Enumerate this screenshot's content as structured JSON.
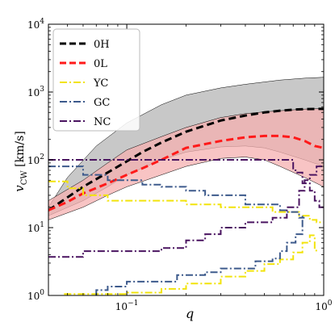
{
  "chart_data": {
    "type": "line",
    "title": "",
    "xlabel": "q",
    "ylabel": "v_CW [km/s]",
    "xscale": "log",
    "yscale": "log",
    "xlim": [
      0.04,
      1.0
    ],
    "ylim": [
      1,
      10000
    ],
    "grid": false,
    "legend_position": "top-left",
    "x_ticks": [
      {
        "value": 0.1,
        "base": "10",
        "exp": "−1"
      },
      {
        "value": 1,
        "base": "10",
        "exp": "0"
      }
    ],
    "y_ticks": [
      {
        "value": 1,
        "base": "10",
        "exp": "0"
      },
      {
        "value": 10,
        "base": "10",
        "exp": "1"
      },
      {
        "value": 100,
        "base": "10",
        "exp": "2"
      },
      {
        "value": 1000,
        "base": "10",
        "exp": "3"
      },
      {
        "value": 10000,
        "base": "10",
        "exp": "4"
      }
    ],
    "bands": [
      {
        "name": "0H",
        "color": "#c8c8c8",
        "upper": {
          "x": [
            0.04,
            0.05,
            0.07,
            0.1,
            0.15,
            0.2,
            0.3,
            0.4,
            0.6,
            0.8,
            1.0
          ],
          "y": [
            20,
            55,
            160,
            350,
            650,
            900,
            1150,
            1300,
            1500,
            1600,
            1650
          ]
        },
        "lower": {
          "x": [
            0.04,
            0.06,
            0.08,
            0.1,
            0.15,
            0.2,
            0.3,
            0.4,
            0.5,
            0.6,
            0.8,
            1.0
          ],
          "y": [
            15,
            25,
            40,
            60,
            100,
            130,
            155,
            160,
            150,
            130,
            100,
            80
          ]
        }
      },
      {
        "name": "0L",
        "color": "#f5b0b0",
        "upper": {
          "x": [
            0.04,
            0.06,
            0.08,
            0.1,
            0.15,
            0.2,
            0.3,
            0.4,
            0.5,
            0.6,
            0.8,
            1.0
          ],
          "y": [
            25,
            50,
            90,
            140,
            220,
            300,
            420,
            480,
            510,
            530,
            560,
            570
          ]
        },
        "lower": {
          "x": [
            0.04,
            0.06,
            0.08,
            0.1,
            0.15,
            0.2,
            0.3,
            0.4,
            0.5,
            0.6,
            0.8,
            1.0
          ],
          "y": [
            13,
            20,
            30,
            40,
            60,
            80,
            105,
            110,
            100,
            80,
            55,
            40
          ]
        }
      }
    ],
    "series": [
      {
        "name": "0H",
        "style": "dashed",
        "color": "#000000",
        "x": [
          0.04,
          0.05,
          0.06,
          0.08,
          0.1,
          0.12,
          0.15,
          0.2,
          0.25,
          0.3,
          0.4,
          0.5,
          0.6,
          0.7,
          0.8,
          1.0
        ],
        "y": [
          18,
          28,
          40,
          65,
          95,
          130,
          180,
          260,
          320,
          380,
          450,
          500,
          530,
          550,
          560,
          565
        ]
      },
      {
        "name": "0L",
        "style": "dashed",
        "color": "#ff1a1a",
        "x": [
          0.04,
          0.05,
          0.06,
          0.08,
          0.1,
          0.12,
          0.15,
          0.2,
          0.3,
          0.4,
          0.5,
          0.6,
          0.7,
          0.8,
          0.9,
          1.0
        ],
        "y": [
          18,
          24,
          32,
          45,
          60,
          75,
          100,
          150,
          190,
          215,
          225,
          225,
          215,
          190,
          160,
          150
        ]
      },
      {
        "name": "YC",
        "style": "dashdot-steps",
        "color": "#f2e30c",
        "steps": [
          {
            "x": [
              0.04,
              0.05,
              0.05,
              0.06,
              0.06,
              0.08,
              0.08,
              0.12,
              0.12,
              0.2,
              0.2,
              0.3,
              0.3,
              0.55,
              0.55,
              0.75,
              0.75,
              0.85,
              0.85,
              0.92,
              0.92,
              1.0
            ],
            "y": [
              48,
              48,
              38,
              38,
              30,
              30,
              25,
              25,
              25,
              25,
              22,
              22,
              20,
              20,
              17,
              17,
              15,
              15,
              13,
              13,
              12,
              12
            ]
          },
          {
            "x": [
              0.048,
              0.07,
              0.07,
              0.1,
              0.1,
              0.15,
              0.15,
              0.2,
              0.2,
              0.3,
              0.3,
              0.4,
              0.4,
              0.5,
              0.5,
              0.6,
              0.6,
              0.7,
              0.7,
              0.78,
              0.78,
              0.85,
              0.85,
              0.9,
              0.9,
              0.93
            ],
            "y": [
              1.05,
              1.05,
              1.05,
              1.05,
              1.1,
              1.1,
              1.25,
              1.25,
              1.5,
              1.5,
              1.9,
              1.9,
              2.3,
              2.3,
              2.9,
              2.9,
              3.4,
              3.4,
              4.3,
              4.3,
              6.0,
              6.0,
              7.7,
              7.7,
              4.6,
              4.6
            ]
          }
        ]
      },
      {
        "name": "GC",
        "style": "dashdot-steps",
        "color": "#3d5a8c",
        "steps": [
          {
            "x": [
              0.04,
              0.06,
              0.06,
              0.08,
              0.08,
              0.12,
              0.12,
              0.15,
              0.15,
              0.2,
              0.2,
              0.25,
              0.25,
              0.4,
              0.4,
              0.6,
              0.6,
              0.65,
              0.65,
              0.75,
              0.75,
              0.8
            ],
            "y": [
              80,
              80,
              60,
              60,
              50,
              50,
              43,
              43,
              40,
              40,
              35,
              35,
              30,
              30,
              22,
              22,
              18,
              18,
              17,
              17,
              14,
              14
            ]
          },
          {
            "x": [
              0.07,
              0.07,
              0.08,
              0.08,
              0.1,
              0.1,
              0.15,
              0.15,
              0.18,
              0.18,
              0.25,
              0.25,
              0.3,
              0.3,
              0.45,
              0.45,
              0.55,
              0.55,
              0.6,
              0.6,
              0.65,
              0.65,
              0.72,
              0.72,
              0.78,
              0.78,
              0.8
            ],
            "y": [
              1.0,
              1.2,
              1.2,
              1.35,
              1.35,
              1.6,
              1.6,
              1.6,
              1.6,
              2.0,
              2.0,
              2.2,
              2.2,
              2.5,
              2.5,
              3.2,
              3.2,
              3.5,
              3.5,
              4.5,
              4.5,
              6.0,
              6.0,
              8.0,
              8.0,
              15,
              15
            ]
          }
        ]
      },
      {
        "name": "NC",
        "style": "dashdot-steps",
        "color": "#4a1460",
        "steps": [
          {
            "x": [
              0.04,
              0.7,
              0.7,
              0.72,
              0.72,
              0.78,
              0.78,
              0.85,
              0.85,
              0.9,
              0.9,
              0.95,
              0.95,
              1.0
            ],
            "y": [
              100,
              100,
              70,
              70,
              65,
              65,
              45,
              45,
              35,
              35,
              25,
              25,
              20,
              20
            ]
          },
          {
            "x": [
              0.04,
              0.06,
              0.06,
              0.15,
              0.15,
              0.2,
              0.2,
              0.25,
              0.25,
              0.3,
              0.3,
              0.4,
              0.4,
              0.55,
              0.55,
              0.65,
              0.65,
              0.75,
              0.75,
              0.8,
              0.8,
              0.85,
              0.85,
              0.92,
              0.92,
              1.0
            ],
            "y": [
              3.7,
              3.7,
              4.5,
              4.5,
              5.0,
              5.0,
              6.5,
              6.5,
              8.0,
              8.0,
              10,
              10,
              12,
              12,
              14,
              14,
              20,
              20,
              35,
              35,
              50,
              50,
              60,
              60,
              80,
              80
            ]
          }
        ]
      }
    ],
    "legend": [
      {
        "label": "0H",
        "color": "#000000",
        "style": "dashed"
      },
      {
        "label": "0L",
        "color": "#ff1a1a",
        "style": "dashed"
      },
      {
        "label": "YC",
        "color": "#f2e30c",
        "style": "dashdot"
      },
      {
        "label": "GC",
        "color": "#3d5a8c",
        "style": "dashdot"
      },
      {
        "label": "NC",
        "color": "#4a1460",
        "style": "dashdot"
      }
    ]
  }
}
